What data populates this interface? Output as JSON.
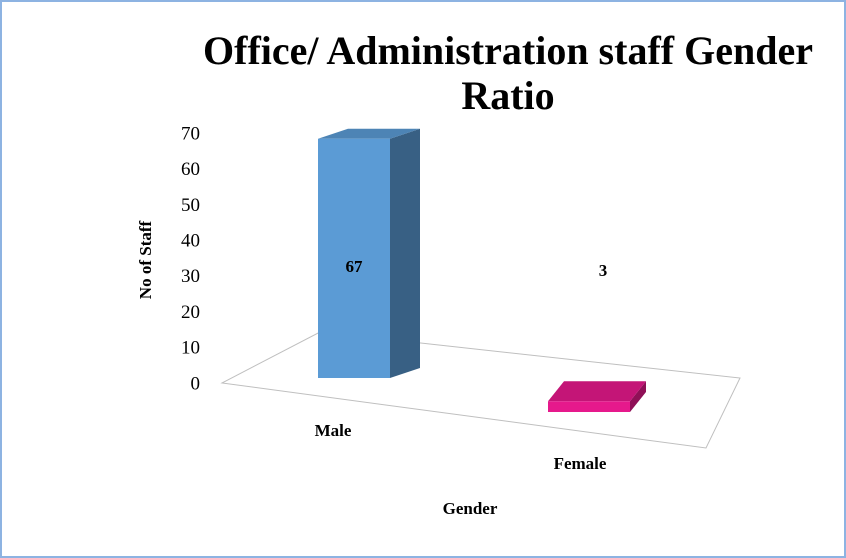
{
  "chart_data": {
    "type": "bar3d",
    "title_lines": [
      "Office/ Administration staff Gender",
      "Ratio"
    ],
    "categories": [
      "Male",
      "Female"
    ],
    "values": [
      67,
      3
    ],
    "colors": [
      "#5b9bd5",
      "#e6198c"
    ],
    "ylim": [
      0,
      70
    ],
    "yticks": [
      0,
      10,
      20,
      30,
      40,
      50,
      60,
      70
    ],
    "ylabel": "No of Staff",
    "xlabel": "Gender",
    "grid": false
  }
}
